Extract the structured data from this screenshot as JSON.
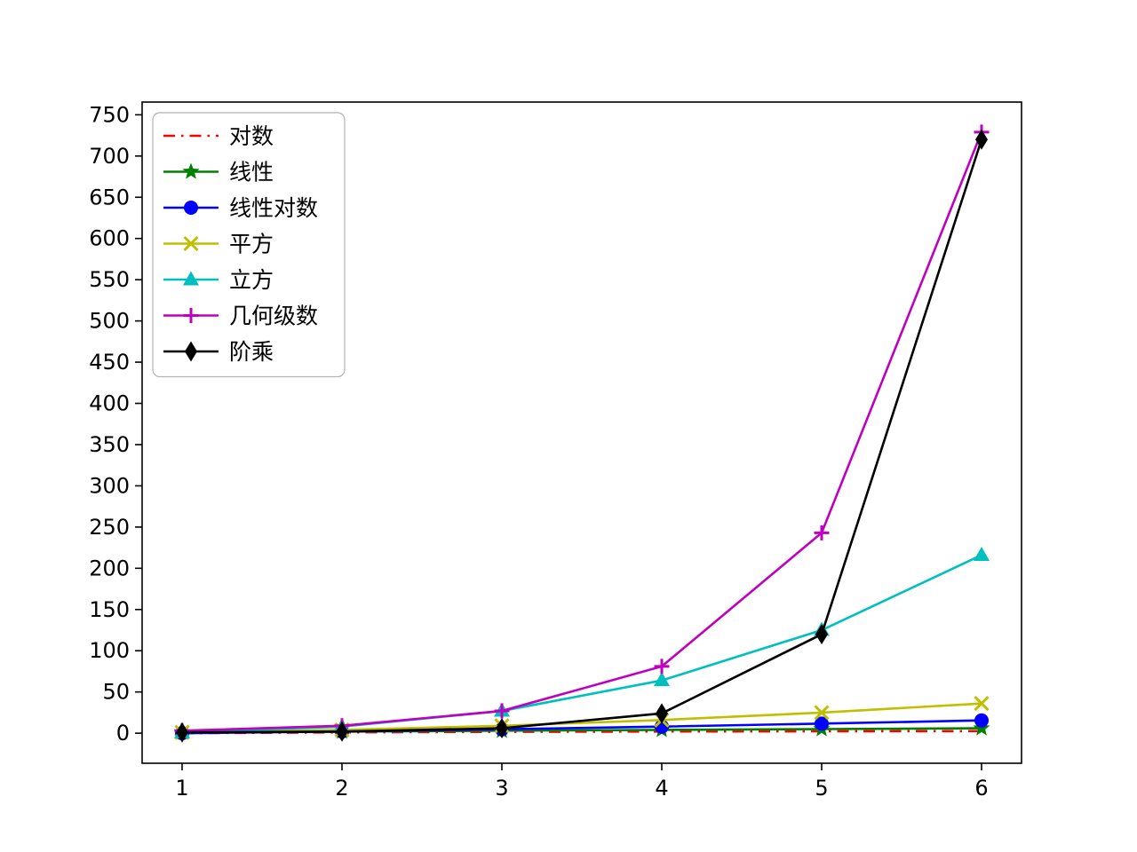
{
  "chart_data": {
    "type": "line",
    "x": [
      1,
      2,
      3,
      4,
      5,
      6
    ],
    "xticks": [
      "1",
      "2",
      "3",
      "4",
      "5",
      "6"
    ],
    "yticks": [
      0,
      50,
      100,
      150,
      200,
      250,
      300,
      350,
      400,
      450,
      500,
      550,
      600,
      650,
      700,
      750
    ],
    "xlim": [
      0.75,
      6.25
    ],
    "ylim": [
      -36.45,
      765.45
    ],
    "grid": false,
    "legend_position": "upper-left",
    "series": [
      {
        "id": "log",
        "name": "对数",
        "color": "#ff0000",
        "marker": "none",
        "dash": "dashdot",
        "values": [
          0,
          1,
          1.58,
          2,
          2.32,
          2.58
        ]
      },
      {
        "id": "linear",
        "name": "线性",
        "color": "#008000",
        "marker": "star",
        "dash": "solid",
        "values": [
          1,
          2,
          3,
          4,
          5,
          6
        ]
      },
      {
        "id": "linearithmic",
        "name": "线性对数",
        "color": "#0000ff",
        "marker": "circle",
        "dash": "solid",
        "values": [
          0,
          2,
          4.75,
          8,
          11.61,
          15.51
        ]
      },
      {
        "id": "square",
        "name": "平方",
        "color": "#bfbf00",
        "marker": "x",
        "dash": "solid",
        "values": [
          1,
          4,
          9,
          16,
          25,
          36
        ]
      },
      {
        "id": "cubic",
        "name": "立方",
        "color": "#00bfbf",
        "marker": "triangle",
        "dash": "solid",
        "values": [
          1,
          8,
          27,
          64,
          125,
          216
        ]
      },
      {
        "id": "geometric",
        "name": "几何级数",
        "color": "#bf00bf",
        "marker": "plus",
        "dash": "solid",
        "values": [
          3,
          9,
          27,
          81,
          243,
          729
        ]
      },
      {
        "id": "factorial",
        "name": "阶乘",
        "color": "#000000",
        "marker": "diamond",
        "dash": "solid",
        "values": [
          1,
          2,
          6,
          24,
          120,
          720
        ]
      }
    ]
  }
}
